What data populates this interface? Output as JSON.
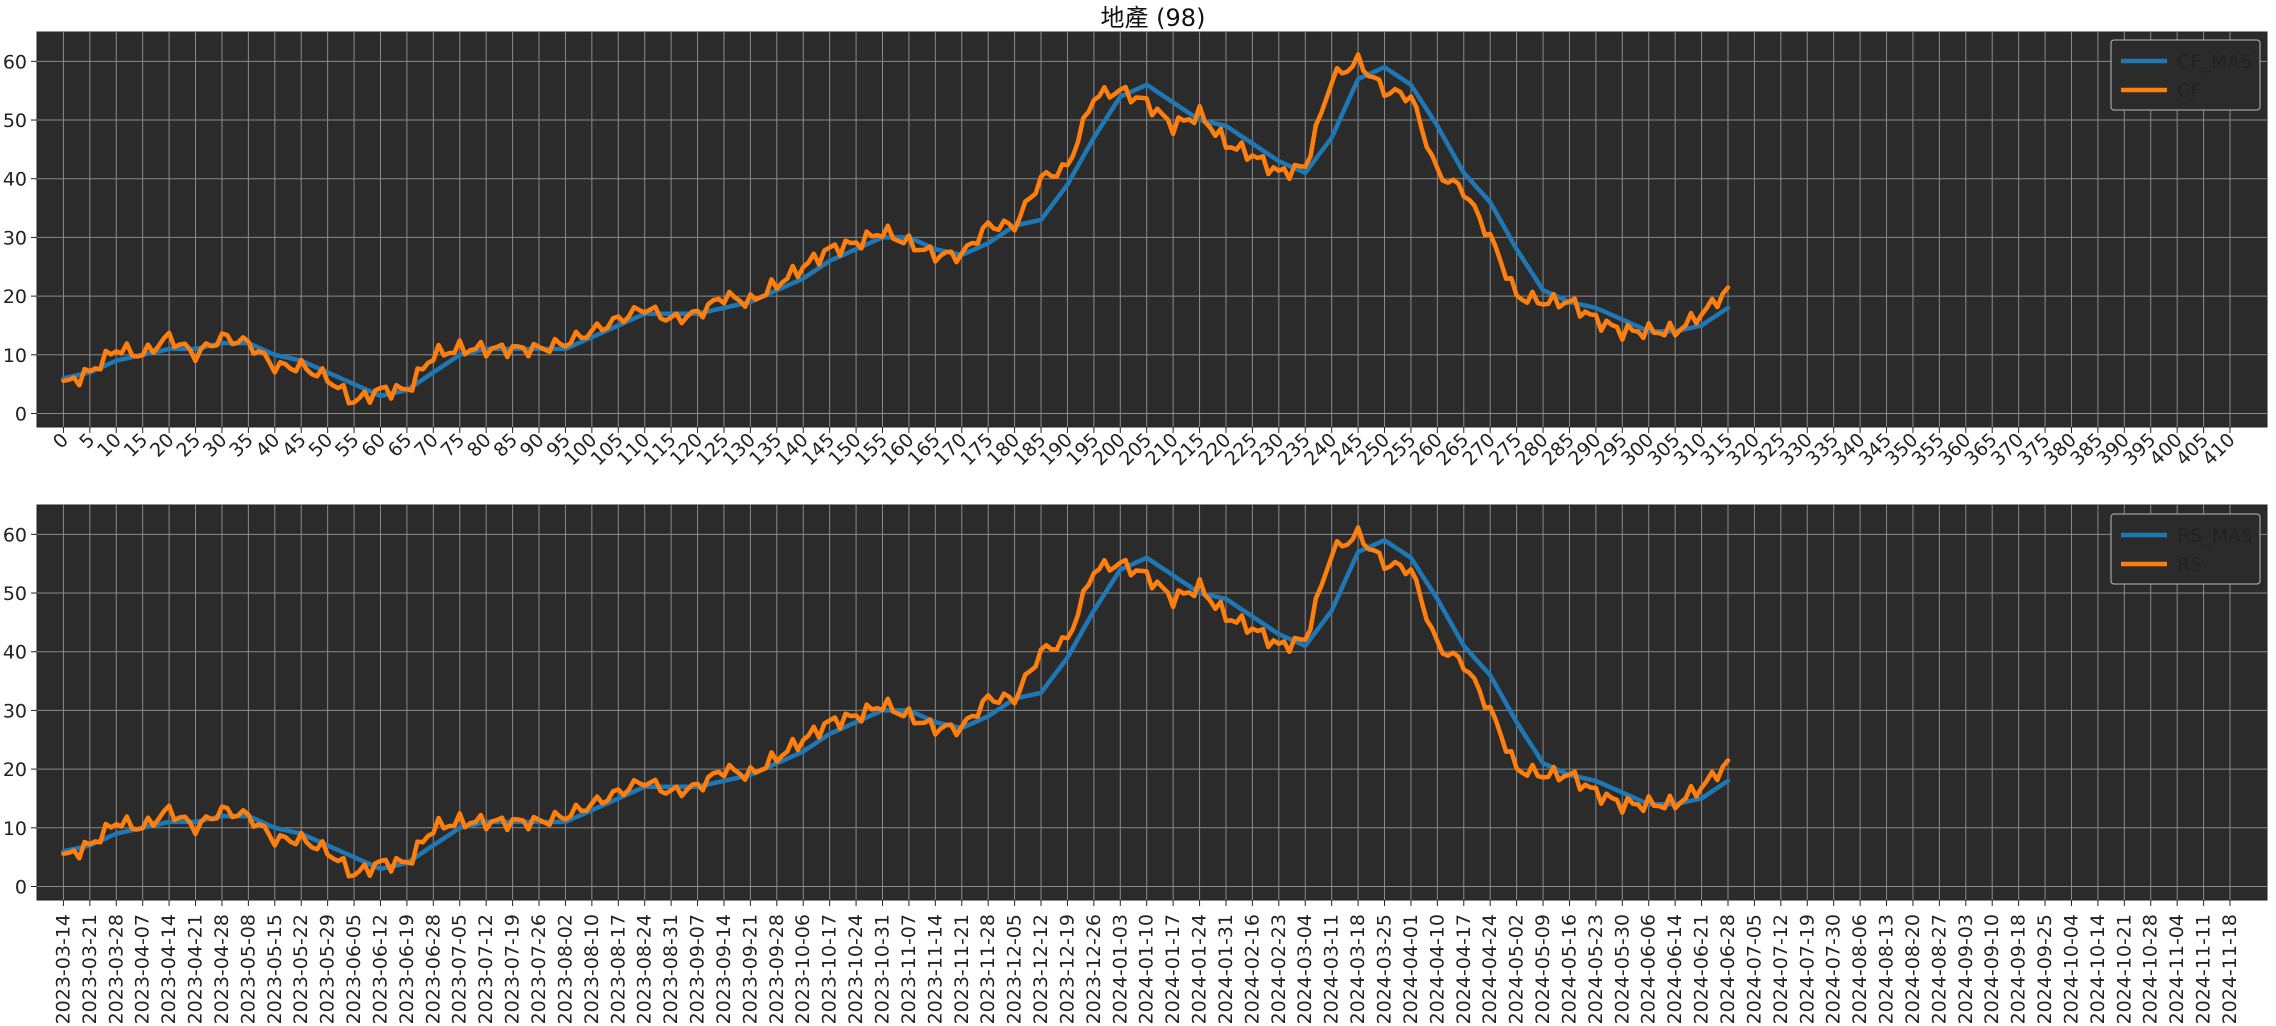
{
  "chart_data": [
    {
      "type": "line",
      "title": "地產 (98)",
      "xlabel": "",
      "ylabel": "",
      "xlim": [
        -5,
        417
      ],
      "ylim": [
        -2.3,
        65
      ],
      "yticks": [
        0,
        10,
        20,
        30,
        40,
        50,
        60
      ],
      "xtick_step": 5,
      "xtick_max": 410,
      "grid": true,
      "legend": "top-right",
      "series": [
        {
          "name": "CF_MA5",
          "color": "#1f77b4",
          "kind": "ma"
        },
        {
          "name": "CF",
          "color": "#ff7f0e",
          "kind": "raw"
        }
      ]
    },
    {
      "type": "line",
      "title": "",
      "xlabel": "",
      "ylabel": "",
      "xlim": [
        -5,
        417
      ],
      "ylim": [
        -2.3,
        65
      ],
      "yticks": [
        0,
        10,
        20,
        30,
        40,
        50,
        60
      ],
      "xtick_labels": [
        "2023-03-14",
        "2023-03-21",
        "2023-03-28",
        "2023-04-07",
        "2023-04-14",
        "2023-04-21",
        "2023-04-28",
        "2023-05-08",
        "2023-05-15",
        "2023-05-22",
        "2023-05-29",
        "2023-06-05",
        "2023-06-12",
        "2023-06-19",
        "2023-06-28",
        "2023-07-05",
        "2023-07-12",
        "2023-07-19",
        "2023-07-26",
        "2023-08-02",
        "2023-08-10",
        "2023-08-17",
        "2023-08-24",
        "2023-08-31",
        "2023-09-07",
        "2023-09-14",
        "2023-09-21",
        "2023-09-28",
        "2023-10-06",
        "2023-10-17",
        "2023-10-24",
        "2023-10-31",
        "2023-11-07",
        "2023-11-14",
        "2023-11-21",
        "2023-11-28",
        "2023-12-05",
        "2023-12-12",
        "2023-12-19",
        "2023-12-26",
        "2024-01-03",
        "2024-01-10",
        "2024-01-17",
        "2024-01-24",
        "2024-01-31",
        "2024-02-16",
        "2024-02-23",
        "2024-03-04",
        "2024-03-11",
        "2024-03-18",
        "2024-03-25",
        "2024-04-01",
        "2024-04-10",
        "2024-04-17",
        "2024-04-24",
        "2024-05-02",
        "2024-05-09",
        "2024-05-16",
        "2024-05-23",
        "2024-05-30",
        "2024-06-06",
        "2024-06-14",
        "2024-06-21",
        "2024-06-28",
        "2024-07-05",
        "2024-07-12",
        "2024-07-19",
        "2024-07-30",
        "2024-08-06",
        "2024-08-13",
        "2024-08-20",
        "2024-08-27",
        "2024-09-03",
        "2024-09-10",
        "2024-09-18",
        "2024-09-25",
        "2024-10-04",
        "2024-10-14",
        "2024-10-21",
        "2024-10-28",
        "2024-11-04",
        "2024-11-11",
        "2024-11-18"
      ],
      "grid": true,
      "legend": "top-right",
      "series": [
        {
          "name": "RS_MA5",
          "color": "#1f77b4",
          "kind": "ma"
        },
        {
          "name": "RS",
          "color": "#ff7f0e",
          "kind": "raw"
        }
      ]
    }
  ],
  "shared_series": {
    "x_start": 0,
    "x_step": 5,
    "raw_every_5": [
      5,
      7,
      11,
      10,
      13,
      10,
      13,
      12,
      8,
      8,
      6,
      2,
      4,
      4,
      10,
      11,
      11,
      11,
      11,
      12,
      14,
      16,
      18,
      16,
      17,
      20,
      19,
      22,
      25,
      28,
      29,
      31,
      29,
      27,
      27,
      32,
      32,
      40,
      42,
      54,
      55,
      53,
      49,
      51,
      46,
      44,
      41,
      42,
      57,
      60,
      55,
      54,
      41,
      38,
      30,
      20,
      19,
      19,
      16,
      14,
      14,
      14,
      17,
      21
    ],
    "ma5_every_5": [
      6,
      7,
      9,
      10,
      11,
      11,
      12,
      12,
      10,
      9,
      7,
      5,
      3,
      4,
      7,
      10,
      11,
      11,
      11,
      11,
      13,
      15,
      17,
      17,
      17,
      18,
      19,
      21,
      23,
      26,
      28,
      30,
      30,
      28,
      27,
      29,
      32,
      33,
      39,
      47,
      54,
      56,
      53,
      50,
      49,
      46,
      43,
      41,
      47,
      57,
      59,
      56,
      49,
      41,
      36,
      28,
      21,
      19,
      18,
      16,
      14,
      14,
      15,
      18
    ]
  }
}
